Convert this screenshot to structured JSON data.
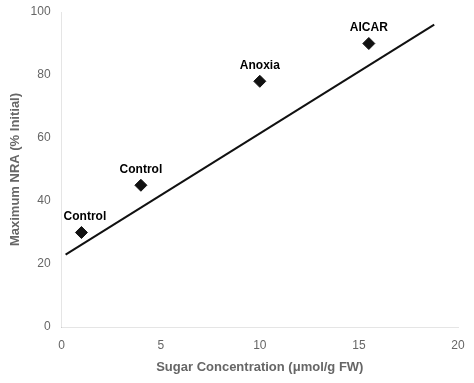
{
  "chart_data": {
    "type": "scatter",
    "xlabel": "Sugar Concentration (μmol/g FW)",
    "ylabel": "Maximum NRA (% Initial)",
    "series": [
      {
        "type": "scatter",
        "marker": "diamond",
        "color": "#111111",
        "x": [
          1.0,
          4.0,
          10.0,
          15.5
        ],
        "values": [
          30,
          45,
          78,
          90
        ],
        "labels": [
          "Control",
          "Control",
          "Anoxia",
          "AICAR"
        ]
      },
      {
        "type": "line",
        "color": "#111111",
        "x": [
          0.2,
          18.8
        ],
        "values": [
          23.0,
          96.0
        ]
      }
    ],
    "xlim": [
      0,
      20
    ],
    "ylim": [
      0,
      100
    ],
    "xticks": [
      0,
      5,
      10,
      15,
      20
    ],
    "yticks": [
      0,
      20,
      40,
      60,
      80,
      100
    ],
    "grid": false
  }
}
